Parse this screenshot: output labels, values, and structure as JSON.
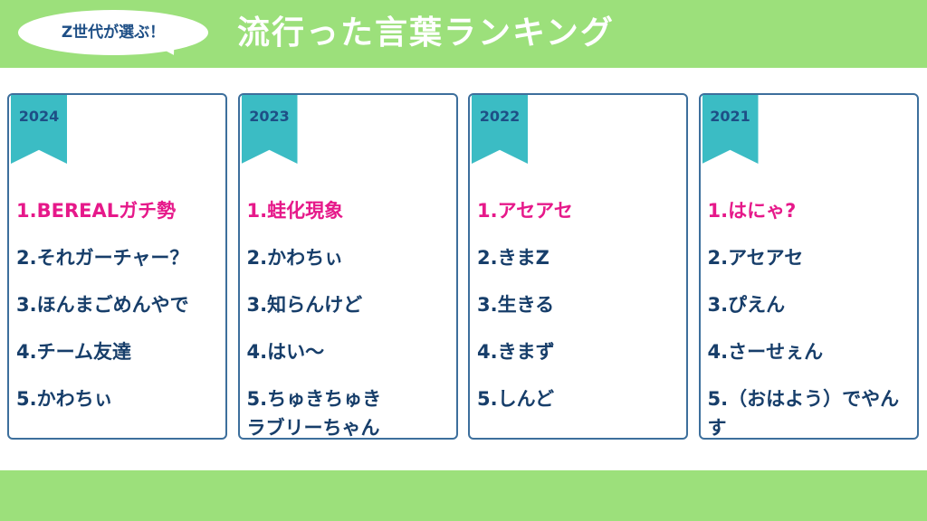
{
  "header": {
    "badge": "Z世代が選ぶ！",
    "title": "流行った言葉ランキング"
  },
  "cards": [
    {
      "year": "2024",
      "items": [
        "1.BEREALガチ勢",
        "2.それガーチャー？",
        "3.ほんまごめんやで",
        "4.チーム友達",
        "5.かわちぃ"
      ]
    },
    {
      "year": "2023",
      "items": [
        "1.蛙化現象",
        "2.かわちぃ",
        "3.知らんけど",
        "4.はい～",
        "5.ちゅきちゅき\nラブリーちゃん"
      ]
    },
    {
      "year": "2022",
      "items": [
        "1.アセアセ",
        "2.きまZ",
        "3.生きる",
        "4.きまず",
        "5.しんど"
      ]
    },
    {
      "year": "2021",
      "items": [
        "1.はにゃ?",
        "2.アセアセ",
        "3.ぴえん",
        "4.さーせぇん",
        "5.（おはよう）でやんす"
      ]
    }
  ]
}
